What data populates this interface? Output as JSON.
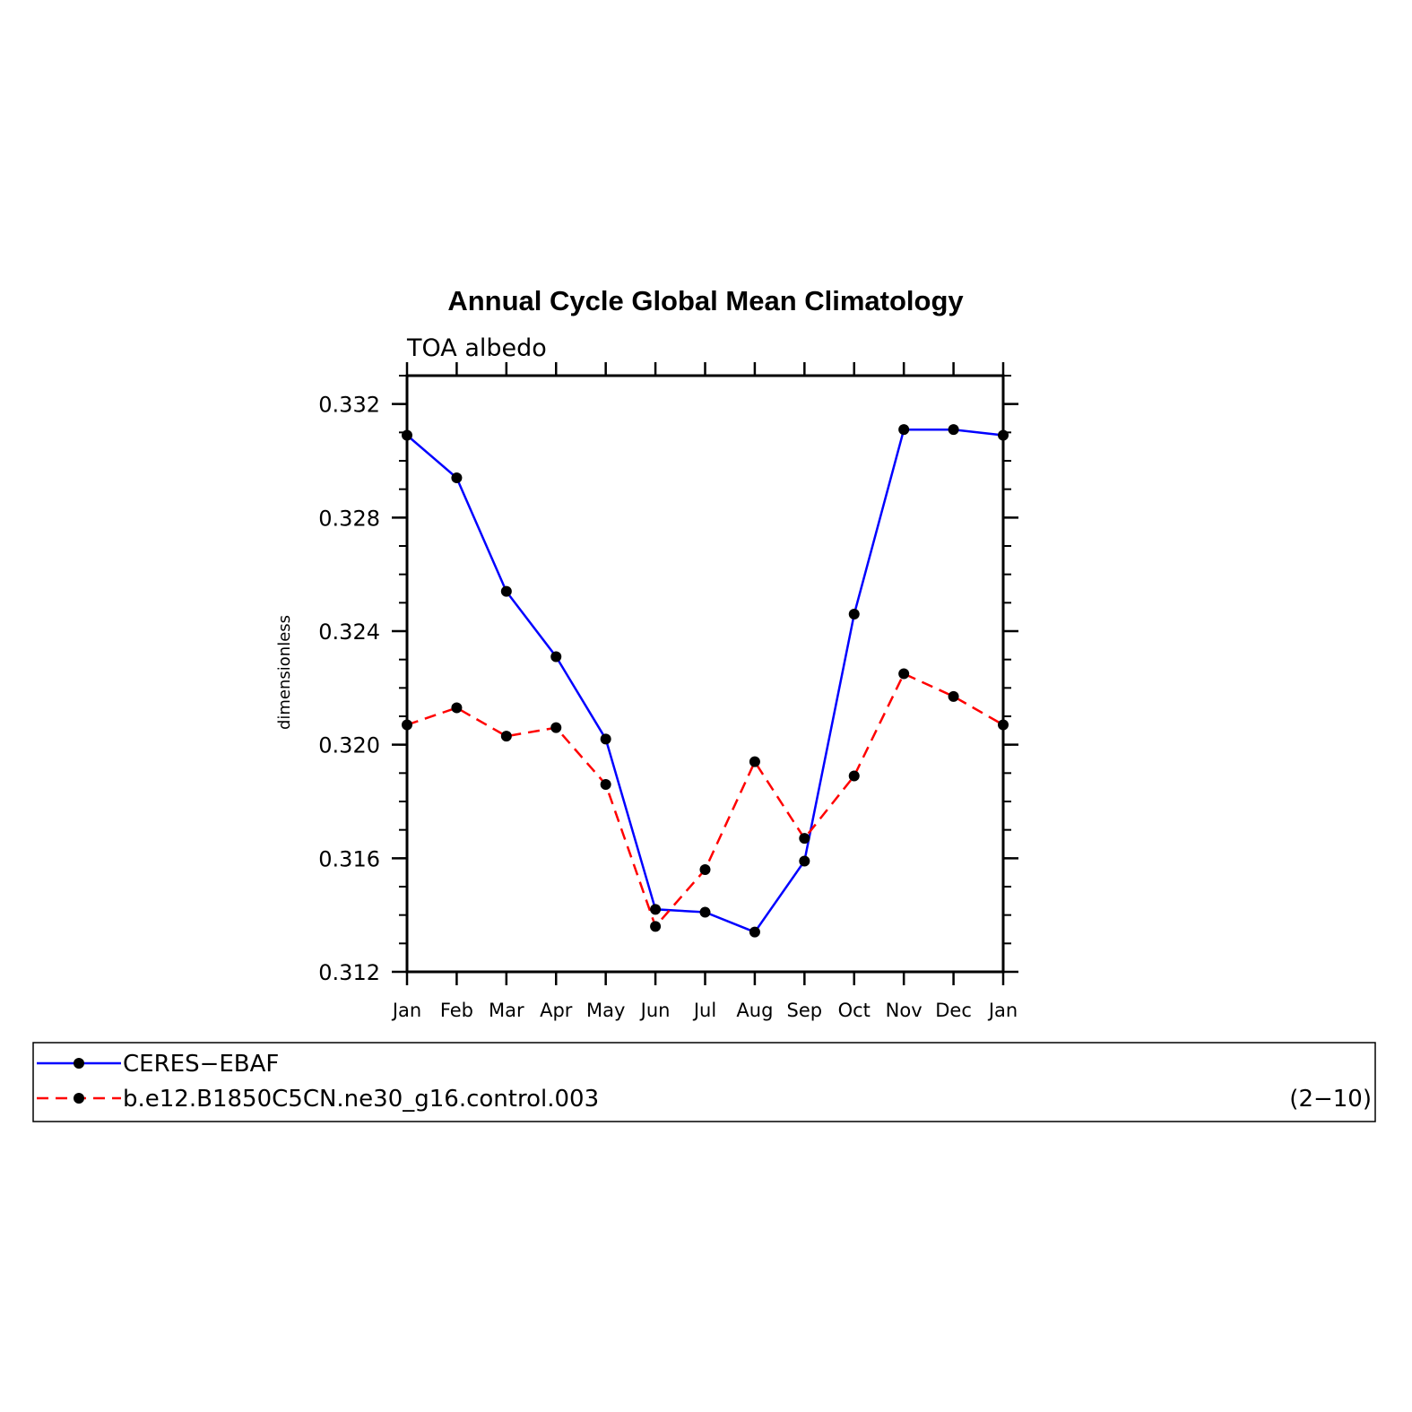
{
  "chart_data": {
    "type": "line",
    "title": "Annual Cycle Global Mean Climatology",
    "subtitle": "TOA albedo",
    "ylabel": "dimensionless",
    "xlabel": "",
    "categories": [
      "Jan",
      "Feb",
      "Mar",
      "Apr",
      "May",
      "Jun",
      "Jul",
      "Aug",
      "Sep",
      "Oct",
      "Nov",
      "Dec",
      "Jan"
    ],
    "ylim": [
      0.312,
      0.333
    ],
    "yticks": [
      0.312,
      0.316,
      0.32,
      0.324,
      0.328,
      0.332
    ],
    "ytick_labels": [
      "0.312",
      "0.316",
      "0.320",
      "0.324",
      "0.328",
      "0.332"
    ],
    "minor_tick_step": 0.001,
    "grid": false,
    "series": [
      {
        "name": "CERES−EBAF",
        "color": "#0000ff",
        "dash": "solid",
        "marker": "dot",
        "values": [
          0.3309,
          0.3294,
          0.3254,
          0.3231,
          0.3202,
          0.3142,
          0.3141,
          0.3134,
          0.3159,
          0.3246,
          0.3311,
          0.3311,
          0.3309
        ]
      },
      {
        "name": "b.e12.B1850C5CN.ne30_g16.control.003",
        "color": "#ff0000",
        "dash": "dashed",
        "marker": "dot",
        "values": [
          0.3207,
          0.3213,
          0.3203,
          0.3206,
          0.3186,
          0.3136,
          0.3156,
          0.3194,
          0.3167,
          0.3189,
          0.3225,
          0.3217,
          0.3207
        ]
      }
    ],
    "legend_note": "(2−10)"
  }
}
